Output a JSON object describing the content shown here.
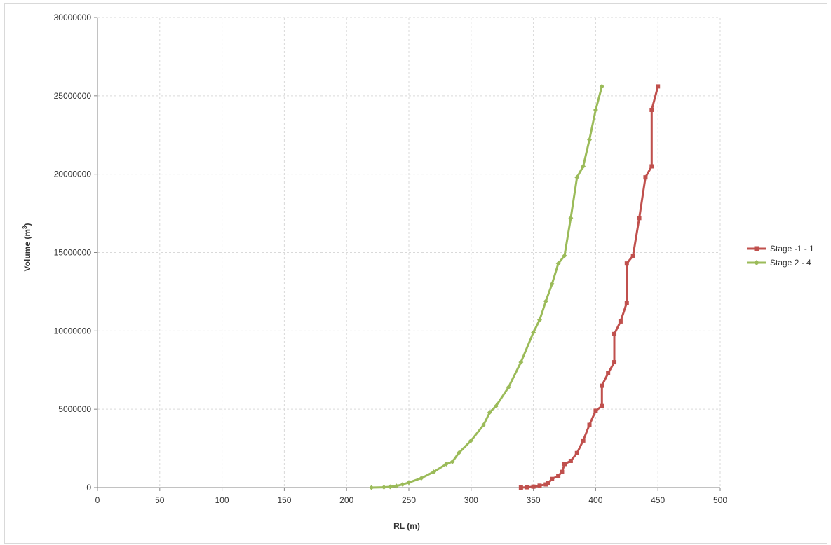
{
  "chart_data": {
    "type": "line",
    "title": "",
    "xlabel": "RL (m)",
    "ylabel_main": "Volume (m",
    "ylabel_sup": "3",
    "ylabel_end": ")",
    "xlim": [
      0,
      500
    ],
    "ylim": [
      0,
      30000000
    ],
    "x_ticks": [
      0,
      50,
      100,
      150,
      200,
      250,
      300,
      350,
      400,
      450,
      500
    ],
    "y_ticks": [
      0,
      5000000,
      10000000,
      15000000,
      20000000,
      25000000,
      30000000
    ],
    "x_tick_labels": [
      "0",
      "50",
      "100",
      "150",
      "200",
      "250",
      "300",
      "350",
      "400",
      "450",
      "500"
    ],
    "y_tick_labels": [
      "0",
      "5000000",
      "10000000",
      "15000000",
      "20000000",
      "25000000",
      "30000000"
    ],
    "grid": true,
    "legend_position": "right",
    "series": [
      {
        "name": "Stage -1 - 1",
        "color": "#c0504d",
        "marker": "square",
        "points": [
          [
            340,
            0
          ],
          [
            345,
            20000
          ],
          [
            350,
            60000
          ],
          [
            355,
            120000
          ],
          [
            360,
            200000
          ],
          [
            362,
            300000
          ],
          [
            365,
            550000
          ],
          [
            370,
            750000
          ],
          [
            373,
            1000000
          ],
          [
            375,
            1500000
          ],
          [
            380,
            1700000
          ],
          [
            385,
            2200000
          ],
          [
            390,
            3000000
          ],
          [
            395,
            4000000
          ],
          [
            400,
            4900000
          ],
          [
            405,
            5200000
          ],
          [
            405,
            6500000
          ],
          [
            410,
            7300000
          ],
          [
            415,
            8000000
          ],
          [
            415,
            9800000
          ],
          [
            420,
            10600000
          ],
          [
            425,
            11800000
          ],
          [
            425,
            14300000
          ],
          [
            430,
            14800000
          ],
          [
            435,
            17200000
          ],
          [
            440,
            19800000
          ],
          [
            445,
            20500000
          ],
          [
            445,
            24100000
          ],
          [
            450,
            25600000
          ]
        ]
      },
      {
        "name": "Stage 2 - 4",
        "color": "#9bbb59",
        "marker": "diamond",
        "points": [
          [
            220,
            0
          ],
          [
            230,
            20000
          ],
          [
            235,
            50000
          ],
          [
            240,
            100000
          ],
          [
            245,
            200000
          ],
          [
            250,
            320000
          ],
          [
            260,
            600000
          ],
          [
            270,
            1000000
          ],
          [
            280,
            1500000
          ],
          [
            285,
            1650000
          ],
          [
            290,
            2200000
          ],
          [
            300,
            3000000
          ],
          [
            310,
            4000000
          ],
          [
            315,
            4800000
          ],
          [
            320,
            5200000
          ],
          [
            330,
            6400000
          ],
          [
            340,
            8000000
          ],
          [
            350,
            9900000
          ],
          [
            355,
            10700000
          ],
          [
            360,
            11900000
          ],
          [
            365,
            13000000
          ],
          [
            370,
            14300000
          ],
          [
            375,
            14800000
          ],
          [
            380,
            17200000
          ],
          [
            385,
            19800000
          ],
          [
            390,
            20500000
          ],
          [
            395,
            22200000
          ],
          [
            400,
            24100000
          ],
          [
            405,
            25600000
          ]
        ]
      }
    ]
  }
}
